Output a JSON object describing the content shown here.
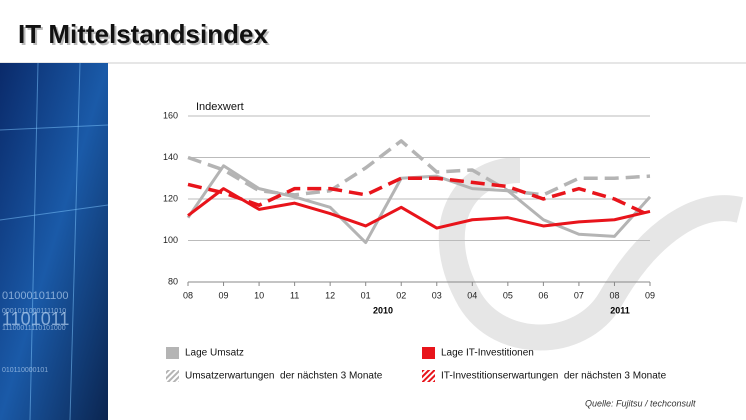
{
  "title": "IT Mittelstandsindex",
  "source": "Quelle: Fujitsu / techconsult",
  "decor_binary": [
    "01000101100",
    "00010110001111010",
    "1101011",
    "11100011110101000",
    "010110000101"
  ],
  "chart_data": {
    "type": "line",
    "ylabel": "Indexwert",
    "categories": [
      "08",
      "09",
      "10",
      "11",
      "12",
      "01",
      "02",
      "03",
      "04",
      "05",
      "06",
      "07",
      "08",
      "09"
    ],
    "x_group_labels": [
      "2010",
      "2011"
    ],
    "ylim": [
      80,
      160
    ],
    "yticks": [
      80,
      100,
      120,
      140,
      160
    ],
    "grid": true,
    "legend": "bottom",
    "series": [
      {
        "name": "Lage Umsatz",
        "color": "#b4b4b4",
        "dashed": false,
        "values": [
          111,
          136,
          125,
          121,
          116,
          99,
          130,
          131,
          125,
          124,
          110,
          103,
          102,
          121
        ]
      },
      {
        "name": "Umsatzerwartungen  der nächsten 3 Monate",
        "color": "#b4b4b4",
        "dashed": true,
        "values": [
          140,
          134,
          124,
          122,
          124,
          135,
          148,
          133,
          134,
          124,
          122,
          130,
          130,
          131
        ]
      },
      {
        "name": "Lage IT-Investitionen",
        "color": "#e8141b",
        "dashed": false,
        "values": [
          112,
          125,
          115,
          118,
          113,
          107,
          116,
          106,
          110,
          111,
          107,
          109,
          110,
          114
        ]
      },
      {
        "name": "IT-Investitionserwartungen  der nächsten 3 Monate",
        "color": "#e8141b",
        "dashed": true,
        "values": [
          127,
          123,
          117,
          125,
          125,
          122,
          130,
          130,
          128,
          126,
          120,
          125,
          120,
          112
        ]
      }
    ]
  }
}
